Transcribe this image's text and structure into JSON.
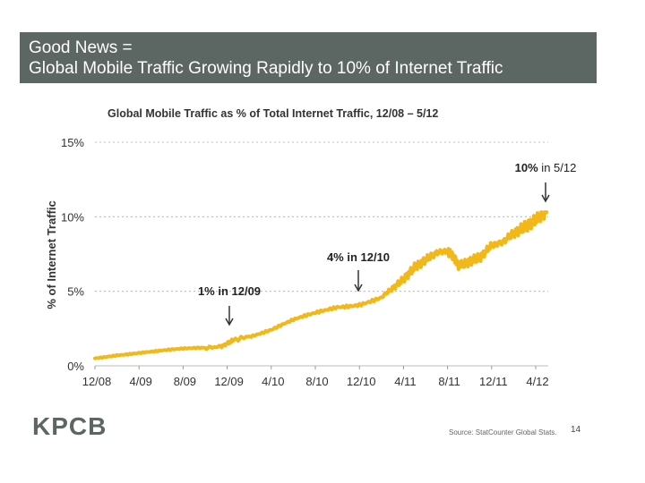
{
  "header": {
    "title_line1": "Good News =",
    "title_line2": "Global Mobile Traffic Growing Rapidly to 10% of Internet Traffic"
  },
  "chart_data": {
    "type": "line",
    "title": "Global Mobile Traffic as % of Total Internet Traffic, 12/08 – 5/12",
    "xlabel": "",
    "ylabel": "% of Internet Traffic",
    "ylim": [
      0,
      15
    ],
    "xlim": [
      0,
      41
    ],
    "grid": true,
    "x_ticks": [
      {
        "label": "12/08",
        "x": 0
      },
      {
        "label": "4/09",
        "x": 4
      },
      {
        "label": "8/09",
        "x": 8
      },
      {
        "label": "12/09",
        "x": 12
      },
      {
        "label": "4/10",
        "x": 16
      },
      {
        "label": "8/10",
        "x": 20
      },
      {
        "label": "12/10",
        "x": 24
      },
      {
        "label": "4/11",
        "x": 28
      },
      {
        "label": "8/11",
        "x": 32
      },
      {
        "label": "12/11",
        "x": 36
      },
      {
        "label": "4/12",
        "x": 40
      }
    ],
    "y_ticks": [
      {
        "label": "0%",
        "y": 0
      },
      {
        "label": "5%",
        "y": 5
      },
      {
        "label": "10%",
        "y": 10
      },
      {
        "label": "15%",
        "y": 15
      }
    ],
    "series": [
      {
        "name": "Global Mobile Traffic",
        "color": "#f2b81a",
        "x": [
          0,
          2,
          4,
          6,
          8,
          10,
          11.5,
          12.5,
          14,
          16,
          18,
          20,
          22,
          24,
          26,
          27,
          28,
          29,
          30,
          31,
          32,
          32.5,
          33,
          34,
          35,
          36,
          37,
          38,
          39,
          40,
          41
        ],
        "y": [
          0.5,
          0.75,
          0.9,
          1.0,
          1.1,
          1.2,
          1.3,
          1.7,
          2.0,
          2.4,
          3.0,
          3.5,
          4.0,
          4.2,
          4.6,
          5.2,
          5.8,
          6.6,
          7.1,
          7.6,
          7.7,
          7.4,
          6.7,
          7.0,
          7.3,
          8.1,
          8.3,
          8.9,
          9.3,
          9.8,
          10.3
        ]
      }
    ],
    "annotations": [
      {
        "id": "ann-12-09",
        "x": 12,
        "y": 2.6,
        "label": "1% in 12/09",
        "bold_part": "1% in 12/09",
        "normal_part": ""
      },
      {
        "id": "ann-12-10",
        "x": 24,
        "y": 4.8,
        "label": "4% in 12/10",
        "bold_part": "4% in 12/10",
        "normal_part": ""
      },
      {
        "id": "ann-5-12",
        "x": 41,
        "y": 10.9,
        "label": "10% in 5/12",
        "bold_part": "10%",
        "normal_part": " in 5/12"
      }
    ]
  },
  "footer": {
    "logo": "KPCB",
    "source": "Source: StatCounter Global Stats.",
    "page_number": "14"
  }
}
